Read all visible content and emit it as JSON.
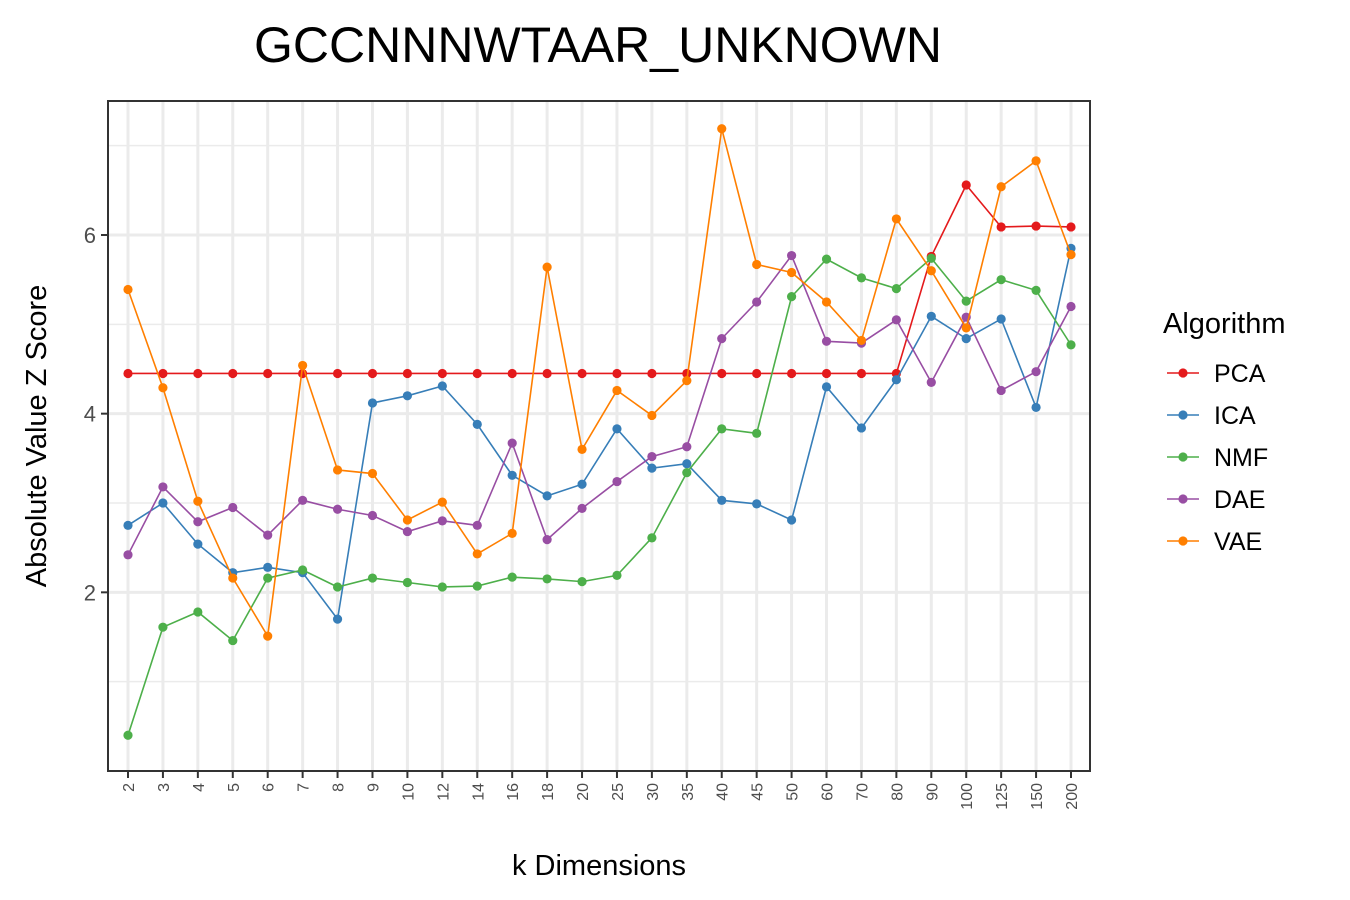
{
  "chart_data": {
    "type": "line",
    "title": "GCCNNNWTAAR_UNKNOWN",
    "xlabel": "k Dimensions",
    "ylabel": "Absolute Value Z Score",
    "categories": [
      "2",
      "3",
      "4",
      "5",
      "6",
      "7",
      "8",
      "9",
      "10",
      "12",
      "14",
      "16",
      "18",
      "20",
      "25",
      "30",
      "35",
      "40",
      "45",
      "50",
      "60",
      "70",
      "80",
      "90",
      "100",
      "125",
      "150",
      "200"
    ],
    "y_ticks": [
      2,
      4,
      6
    ],
    "ylim": [
      0.0,
      7.5
    ],
    "grid": true,
    "legend": {
      "title": "Algorithm",
      "placement": "right"
    },
    "series": [
      {
        "name": "PCA",
        "color": "#e41a1c",
        "values": [
          4.45,
          4.45,
          4.45,
          4.45,
          4.45,
          4.45,
          4.45,
          4.45,
          4.45,
          4.45,
          4.45,
          4.45,
          4.45,
          4.45,
          4.45,
          4.45,
          4.45,
          4.45,
          4.45,
          4.45,
          4.45,
          4.45,
          4.45,
          5.76,
          6.56,
          6.09,
          6.1,
          6.09
        ]
      },
      {
        "name": "ICA",
        "color": "#377eb8",
        "values": [
          2.75,
          3.0,
          2.54,
          2.22,
          2.28,
          2.22,
          1.7,
          4.12,
          4.2,
          4.31,
          3.88,
          3.31,
          3.08,
          3.21,
          3.83,
          3.39,
          3.44,
          3.03,
          2.99,
          2.81,
          4.3,
          3.84,
          4.38,
          5.09,
          4.84,
          5.06,
          4.07,
          5.85
        ]
      },
      {
        "name": "NMF",
        "color": "#4daf4a",
        "values": [
          0.4,
          1.61,
          1.78,
          1.46,
          2.16,
          2.25,
          2.06,
          2.16,
          2.11,
          2.06,
          2.07,
          2.17,
          2.15,
          2.12,
          2.19,
          2.61,
          3.34,
          3.83,
          3.78,
          5.31,
          5.73,
          5.52,
          5.4,
          5.74,
          5.26,
          5.5,
          5.38,
          4.77
        ]
      },
      {
        "name": "DAE",
        "color": "#984ea3",
        "values": [
          2.42,
          3.18,
          2.79,
          2.95,
          2.64,
          3.03,
          2.93,
          2.86,
          2.68,
          2.8,
          2.75,
          3.67,
          2.59,
          2.94,
          3.24,
          3.52,
          3.63,
          4.84,
          5.25,
          5.77,
          4.81,
          4.79,
          5.05,
          4.35,
          5.08,
          4.26,
          4.47,
          5.2
        ]
      },
      {
        "name": "VAE",
        "color": "#ff7f00",
        "values": [
          5.39,
          4.29,
          3.02,
          2.16,
          1.51,
          4.54,
          3.37,
          3.33,
          2.81,
          3.01,
          2.43,
          2.66,
          5.64,
          3.6,
          4.26,
          3.98,
          4.37,
          7.19,
          5.67,
          5.58,
          5.25,
          4.82,
          6.18,
          5.6,
          4.96,
          6.54,
          6.83,
          5.78
        ]
      }
    ]
  }
}
